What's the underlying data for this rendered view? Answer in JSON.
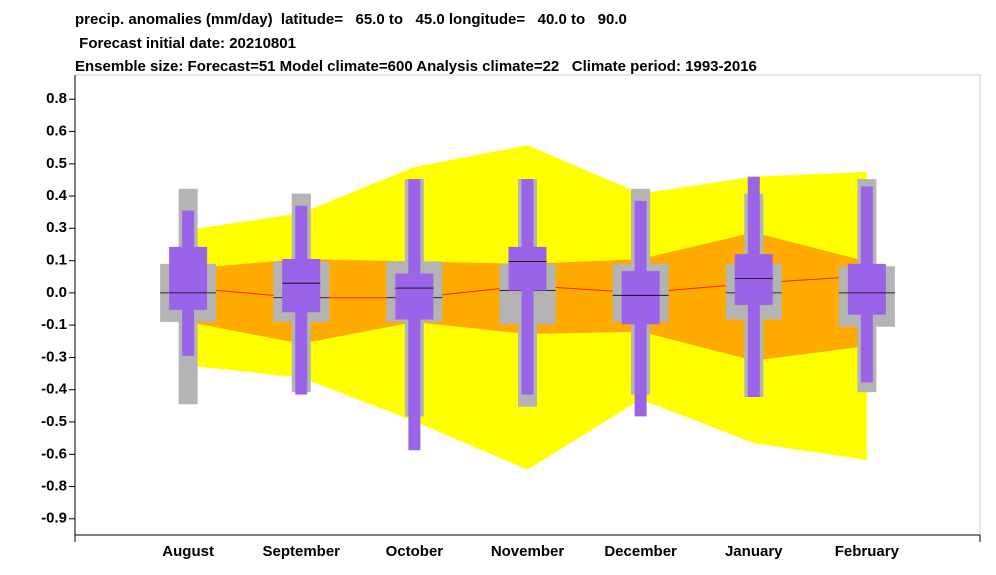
{
  "chart_data": {
    "type": "box",
    "title": [
      "precip. anomalies (mm/day)  latitude=   65.0 to   45.0 longitude=   40.0 to   90.0",
      " Forecast initial date: 20210801",
      "Ensemble size: Forecast=51 Model climate=600 Analysis climate=22   Climate period: 1993-2016"
    ],
    "categories": [
      "August",
      "September",
      "October",
      "November",
      "December",
      "January",
      "February"
    ],
    "ylim": [
      -1.0,
      0.9
    ],
    "yticks": [
      {
        "value": 0.8,
        "label": "0.8"
      },
      {
        "value": 0.667,
        "label": "0.6"
      },
      {
        "value": 0.533,
        "label": "0.5"
      },
      {
        "value": 0.4,
        "label": "0.4"
      },
      {
        "value": 0.267,
        "label": "0.3"
      },
      {
        "value": 0.133,
        "label": "0.1"
      },
      {
        "value": 0,
        "label": "0.0"
      },
      {
        "value": -0.133,
        "label": "-0.1"
      },
      {
        "value": -0.267,
        "label": "-0.3"
      },
      {
        "value": -0.4,
        "label": "-0.4"
      },
      {
        "value": -0.533,
        "label": "-0.5"
      },
      {
        "value": -0.667,
        "label": "-0.6"
      },
      {
        "value": -0.8,
        "label": "-0.8"
      },
      {
        "value": -0.933,
        "label": "-0.9"
      }
    ],
    "plume_outer": {
      "color": "#ffff00",
      "upper": [
        0.26,
        0.33,
        0.52,
        0.61,
        0.41,
        0.48,
        0.5
      ],
      "lower": [
        -0.3,
        -0.35,
        -0.53,
        -0.73,
        -0.44,
        -0.62,
        -0.69
      ]
    },
    "plume_inner": {
      "color": "#ffaa00",
      "upper": [
        0.1,
        0.14,
        0.13,
        0.12,
        0.14,
        0.25,
        0.13
      ],
      "lower": [
        -0.12,
        -0.21,
        -0.12,
        -0.17,
        -0.16,
        -0.28,
        -0.22
      ]
    },
    "climate_median": {
      "color": "#ff2000",
      "values": [
        0.02,
        -0.02,
        -0.02,
        0.03,
        0.0,
        0.04,
        0.07
      ]
    },
    "boxes": [
      {
        "color": "#b4b4b4",
        "whisker_high": [
          0.43,
          0.41,
          0.47,
          0.47,
          0.43,
          0.41,
          0.47
        ],
        "whisker_low": [
          -0.46,
          -0.41,
          -0.51,
          -0.47,
          -0.42,
          -0.43,
          -0.41
        ],
        "box_high": [
          0.12,
          0.13,
          0.13,
          0.12,
          0.12,
          0.12,
          0.11
        ],
        "box_low": [
          -0.12,
          -0.12,
          -0.12,
          -0.13,
          -0.12,
          -0.11,
          -0.14
        ],
        "median": [
          0.0,
          -0.02,
          -0.02,
          0.01,
          -0.01,
          0.0,
          0.0
        ]
      },
      {
        "color": "#9a63e8",
        "whisker_high": [
          0.34,
          0.36,
          0.47,
          0.47,
          0.38,
          0.48,
          0.44
        ],
        "whisker_low": [
          -0.26,
          -0.42,
          -0.65,
          -0.42,
          -0.51,
          -0.43,
          -0.37
        ],
        "box_high": [
          0.19,
          0.14,
          0.08,
          0.19,
          0.09,
          0.16,
          0.12
        ],
        "box_low": [
          -0.07,
          -0.08,
          -0.11,
          0.01,
          -0.13,
          -0.05,
          -0.09
        ],
        "median": [
          0.0,
          0.04,
          0.02,
          0.13,
          -0.01,
          0.06,
          0.0
        ]
      }
    ]
  }
}
